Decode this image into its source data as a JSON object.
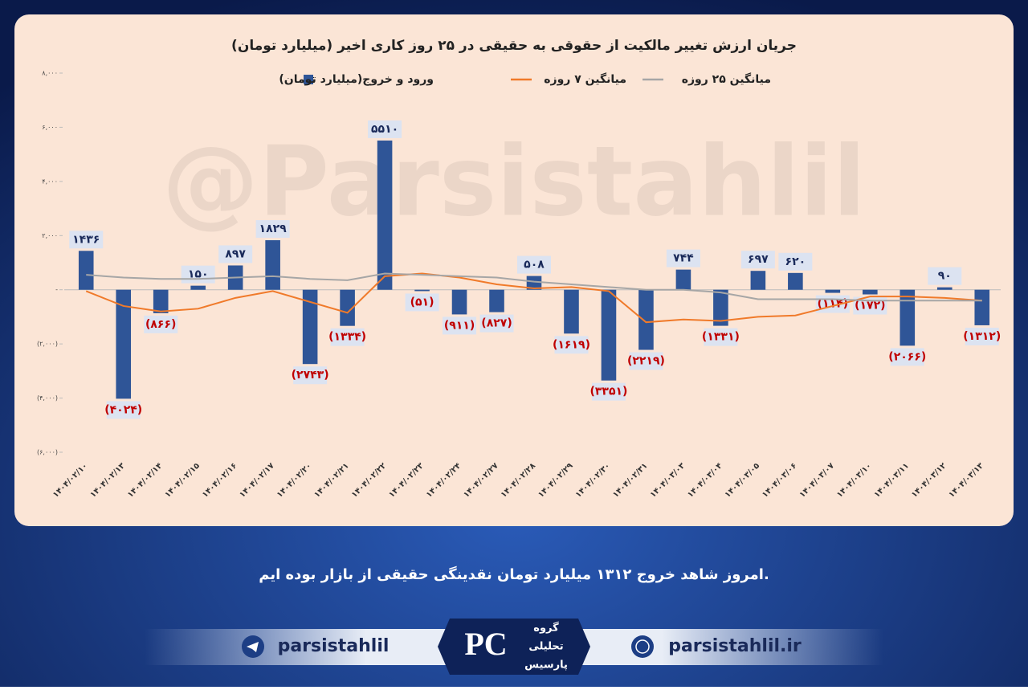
{
  "chart_data": {
    "type": "bar",
    "title": "جریان ارزش تغییر مالکیت از حقوقی به حقیقی در ۲۵ روز کاری اخیر (میلیارد تومان)",
    "watermark": "@Parsistahlil",
    "categories": [
      "۱۴۰۴/۰۲/۱۰",
      "۱۴۰۴/۰۲/۱۳",
      "۱۴۰۴/۰۲/۱۴",
      "۱۴۰۴/۰۲/۱۵",
      "۱۴۰۴/۰۲/۱۶",
      "۱۴۰۴/۰۲/۱۷",
      "۱۴۰۴/۰۲/۲۰",
      "۱۴۰۴/۰۲/۲۱",
      "۱۴۰۴/۰۲/۲۲",
      "۱۴۰۴/۰۲/۲۳",
      "۱۴۰۴/۰۲/۲۴",
      "۱۴۰۴/۰۲/۲۷",
      "۱۴۰۴/۰۲/۲۸",
      "۱۴۰۴/۰۲/۲۹",
      "۱۴۰۴/۰۲/۳۰",
      "۱۴۰۴/۰۲/۳۱",
      "۱۴۰۴/۰۳/۰۳",
      "۱۴۰۴/۰۳/۰۴",
      "۱۴۰۴/۰۳/۰۵",
      "۱۴۰۴/۰۳/۰۶",
      "۱۴۰۴/۰۳/۰۷",
      "۱۴۰۴/۰۳/۱۰",
      "۱۴۰۴/۰۳/۱۱",
      "۱۴۰۴/۰۳/۱۲",
      "۱۴۰۴/۰۳/۱۳"
    ],
    "series": [
      {
        "name": "ورود و خروج(میلیارد تومان)",
        "type": "bar",
        "color": "#2f5597",
        "values": [
          1436,
          -4024,
          -866,
          150,
          897,
          1829,
          -2743,
          -1334,
          5510,
          -51,
          -911,
          -827,
          508,
          -1619,
          -3351,
          -2219,
          744,
          -1331,
          697,
          620,
          -114,
          -172,
          -2066,
          90,
          -1312
        ],
        "value_labels": [
          "۱۴۳۶",
          "(۴۰۲۴)",
          "(۸۶۶)",
          "۱۵۰",
          "۸۹۷",
          "۱۸۲۹",
          "(۲۷۴۳)",
          "(۱۳۳۴)",
          "۵۵۱۰",
          "(۵۱)",
          "(۹۱۱)",
          "(۸۲۷)",
          "۵۰۸",
          "(۱۶۱۹)",
          "(۳۳۵۱)",
          "(۲۲۱۹)",
          "۷۴۴",
          "(۱۳۳۱)",
          "۶۹۷",
          "۶۲۰",
          "(۱۱۴)",
          "(۱۷۲)",
          "(۲۰۶۶)",
          "۹۰",
          "(۱۳۱۲)"
        ]
      },
      {
        "name": "میانگین ۷ روزه",
        "type": "line",
        "color": "#f07a2a",
        "values": [
          -50,
          -600,
          -800,
          -700,
          -300,
          -50,
          -450,
          -850,
          500,
          600,
          450,
          200,
          50,
          100,
          -50,
          -1200,
          -1100,
          -1150,
          -1000,
          -950,
          -600,
          -250,
          -250,
          -300,
          -400
        ]
      },
      {
        "name": "میانگین ۲۵ روزه",
        "type": "line",
        "color": "#a6a6a6",
        "values": [
          550,
          450,
          400,
          400,
          450,
          500,
          400,
          350,
          600,
          550,
          500,
          450,
          300,
          200,
          100,
          0,
          0,
          -100,
          -350,
          -350,
          -350,
          -400,
          -400,
          -400,
          -400
        ]
      }
    ],
    "ylim": [
      -6000,
      8000
    ],
    "yticks": [
      {
        "value": 8000,
        "label": "۸,۰۰۰"
      },
      {
        "value": 6000,
        "label": "۶,۰۰۰"
      },
      {
        "value": 4000,
        "label": "۴,۰۰۰"
      },
      {
        "value": 2000,
        "label": "۲,۰۰۰"
      },
      {
        "value": 0,
        "label": "-"
      },
      {
        "value": -2000,
        "label": "(۲,۰۰۰)"
      },
      {
        "value": -4000,
        "label": "(۴,۰۰۰)"
      },
      {
        "value": -6000,
        "label": "(۶,۰۰۰)"
      }
    ],
    "grid": false
  },
  "caption": "امروز شاهد خروج ۱۳۱۲ میلیارد تومان نقدینگی حقیقی از بازار بوده ایم.",
  "footer": {
    "telegram": "parsistahlil",
    "website": "parsistahlil.ir",
    "logo": [
      "گروه",
      "تحلیلی",
      "پارسیس"
    ]
  }
}
